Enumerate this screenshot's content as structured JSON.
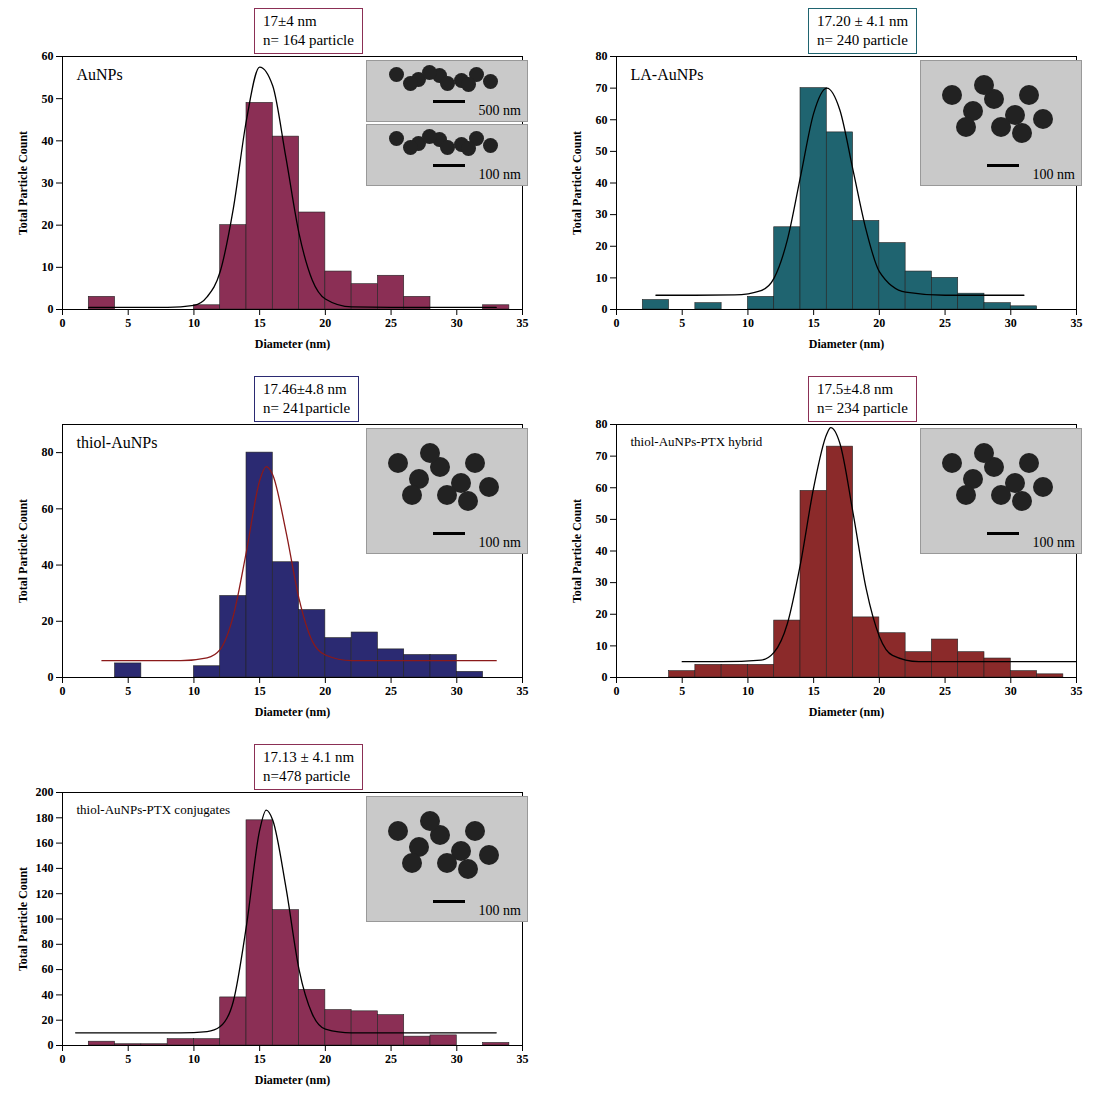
{
  "chart_data": [
    {
      "type": "histogram",
      "title": "AuNPs",
      "x_label": "Diameter (nm)",
      "y_label": "Total Particle Count",
      "bins": [
        2,
        4,
        6,
        8,
        10,
        12,
        14,
        16,
        18,
        20,
        22,
        24,
        26,
        28,
        30,
        32,
        34
      ],
      "values": [
        3,
        0,
        0,
        0,
        1,
        20,
        49,
        41,
        23,
        9,
        6,
        8,
        3,
        0,
        0,
        1
      ],
      "color": "#8b2f55",
      "xlim": [
        0,
        35
      ],
      "xticks": [
        0,
        5,
        10,
        15,
        20,
        25,
        30,
        35
      ],
      "ylim": [
        0,
        60
      ],
      "yticks": [
        0,
        10,
        20,
        30,
        40,
        50,
        60
      ],
      "fit": {
        "x": [
          2,
          5,
          8,
          10,
          11,
          12,
          13,
          14,
          15,
          16,
          17,
          18,
          19,
          20,
          22,
          25,
          28,
          33
        ],
        "values": [
          0.5,
          0.5,
          0.5,
          1,
          3,
          9,
          24,
          45,
          57.5,
          53,
          36,
          18,
          7,
          2.5,
          0.6,
          0.5,
          0.5,
          0.5
        ],
        "color": "#000000"
      },
      "annotations": {
        "texts": [
          "17±4 nm",
          "n= 164 particle"
        ],
        "color": "#8b2f55"
      },
      "image_labels": [
        "500 nm",
        "100 nm"
      ]
    },
    {
      "type": "histogram",
      "title": "LA-AuNPs",
      "x_label": "Diameter (nm)",
      "y_label": "Total Particle Count",
      "bins": [
        2,
        4,
        6,
        8,
        10,
        12,
        14,
        16,
        18,
        20,
        22,
        24,
        26,
        28,
        30,
        32
      ],
      "values": [
        3,
        0,
        2,
        0,
        4,
        26,
        70,
        56,
        28,
        21,
        12,
        10,
        5,
        2,
        1
      ],
      "color": "#1f6470",
      "xlim": [
        0,
        35
      ],
      "xticks": [
        0,
        5,
        10,
        15,
        20,
        25,
        30,
        35
      ],
      "ylim": [
        0,
        80
      ],
      "yticks": [
        0,
        10,
        20,
        30,
        40,
        50,
        60,
        70,
        80
      ],
      "fit": {
        "x": [
          3,
          6,
          9,
          11,
          12,
          13,
          14,
          15,
          16,
          17,
          18,
          19,
          20,
          22,
          25,
          28,
          31
        ],
        "values": [
          4.5,
          4.5,
          4.6,
          6,
          10,
          22,
          42,
          62,
          70,
          63,
          44,
          25,
          12,
          5.5,
          4.5,
          4.5,
          4.5
        ],
        "color": "#000000"
      },
      "annotations": {
        "texts": [
          "17.20 ± 4.1 nm",
          "n= 240 particle"
        ],
        "color": "#1f6470"
      },
      "image_labels": [
        "100 nm"
      ]
    },
    {
      "type": "histogram",
      "title": "thiol-AuNPs",
      "x_label": "Diameter (nm)",
      "y_label": "Total Particle Count",
      "bins": [
        4,
        6,
        8,
        10,
        12,
        14,
        16,
        18,
        20,
        22,
        24,
        26,
        28,
        30,
        32
      ],
      "values": [
        5,
        0,
        0,
        4,
        29,
        80,
        41,
        24,
        14,
        16,
        10,
        8,
        8,
        2
      ],
      "color": "#2b2a72",
      "xlim": [
        0,
        35
      ],
      "xticks": [
        0,
        5,
        10,
        15,
        20,
        25,
        30,
        35
      ],
      "ylim": [
        0,
        90
      ],
      "yticks": [
        0,
        20,
        40,
        60,
        80
      ],
      "fit": {
        "x": [
          3,
          6,
          9,
          11,
          12,
          13,
          14,
          15,
          15.5,
          16,
          17,
          18,
          19,
          20,
          22,
          25,
          29,
          33
        ],
        "values": [
          6,
          6,
          6,
          7,
          10,
          22,
          45,
          70,
          75,
          72,
          52,
          28,
          13,
          8,
          6,
          6,
          6,
          6
        ],
        "color": "#8b1a1a"
      },
      "annotations": {
        "texts": [
          "17.46±4.8 nm",
          "n= 241particle"
        ],
        "color": "#2b2a72"
      },
      "image_labels": [
        "100 nm"
      ]
    },
    {
      "type": "histogram",
      "title": "thiol-AuNPs-PTX hybrid",
      "x_label": "Diameter (nm)",
      "y_label": "Total Particle Count",
      "bins": [
        4,
        6,
        8,
        10,
        12,
        14,
        16,
        18,
        20,
        22,
        24,
        26,
        28,
        30,
        32,
        34
      ],
      "values": [
        2,
        4,
        4,
        4,
        18,
        59,
        73,
        19,
        14,
        8,
        12,
        8,
        6,
        2,
        1
      ],
      "color": "#8b2a2a",
      "xlim": [
        0,
        35
      ],
      "xticks": [
        0,
        5,
        10,
        15,
        20,
        25,
        30,
        35
      ],
      "ylim": [
        0,
        80
      ],
      "yticks": [
        0,
        10,
        20,
        30,
        40,
        50,
        60,
        70,
        80
      ],
      "fit": {
        "x": [
          5,
          8,
          11,
          12,
          13,
          14,
          15,
          16,
          16.3,
          17,
          18,
          19,
          20,
          21,
          23,
          27,
          35
        ],
        "values": [
          5,
          5,
          5.5,
          8,
          17,
          36,
          60,
          77,
          79,
          74,
          52,
          28,
          13,
          7,
          5,
          5,
          5
        ],
        "color": "#000000"
      },
      "annotations": {
        "texts": [
          "17.5±4.8 nm",
          "n= 234 particle"
        ],
        "color": "#8b2f55"
      },
      "image_labels": [
        "100 nm"
      ]
    },
    {
      "type": "histogram",
      "title": "thiol-AuNPs-PTX conjugates",
      "x_label": "Diameter (nm)",
      "y_label": "Total Particle Count",
      "bins": [
        2,
        4,
        6,
        8,
        10,
        12,
        14,
        16,
        18,
        20,
        22,
        24,
        26,
        28,
        30,
        32,
        34
      ],
      "values": [
        3,
        1,
        1,
        5,
        5,
        38,
        178,
        107,
        44,
        28,
        27,
        24,
        7,
        8,
        0,
        2
      ],
      "color": "#8b2f55",
      "xlim": [
        0,
        35
      ],
      "xticks": [
        0,
        5,
        10,
        15,
        20,
        25,
        30,
        35
      ],
      "ylim": [
        0,
        200
      ],
      "yticks": [
        0,
        20,
        40,
        60,
        80,
        100,
        120,
        140,
        160,
        180,
        200
      ],
      "fit": {
        "x": [
          1,
          5,
          9,
          11,
          12,
          13,
          14,
          15,
          15.5,
          16,
          17,
          18,
          19,
          20,
          22,
          26,
          33
        ],
        "values": [
          10,
          10,
          10,
          11,
          15,
          35,
          95,
          170,
          186,
          178,
          125,
          60,
          25,
          13,
          10,
          10,
          10
        ],
        "color": "#000000"
      },
      "annotations": {
        "texts": [
          "17.13 ± 4.1 nm",
          "n=478 particle"
        ],
        "color": "#8b2f55"
      },
      "image_labels": [
        "100 nm"
      ]
    }
  ]
}
